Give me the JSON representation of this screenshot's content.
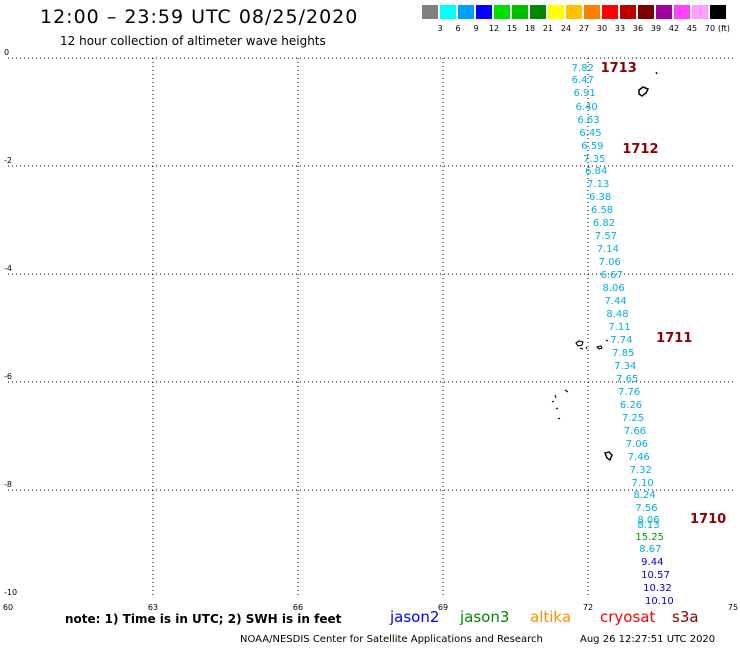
{
  "header": {
    "title": "12:00 – 23:59 UTC 08/25/2020",
    "subtitle": "12 hour collection of altimeter wave heights"
  },
  "legend": {
    "unit": "(ft)",
    "bins": [
      {
        "label": "3",
        "color": "#808080"
      },
      {
        "label": "6",
        "color": "#00ffff"
      },
      {
        "label": "9",
        "color": "#00a0ff"
      },
      {
        "label": "12",
        "color": "#0000ff"
      },
      {
        "label": "15",
        "color": "#00e000"
      },
      {
        "label": "18",
        "color": "#00c000"
      },
      {
        "label": "21",
        "color": "#008800"
      },
      {
        "label": "24",
        "color": "#ffff00"
      },
      {
        "label": "27",
        "color": "#ffc000"
      },
      {
        "label": "30",
        "color": "#ff8000"
      },
      {
        "label": "33",
        "color": "#ff0000"
      },
      {
        "label": "36",
        "color": "#c00000"
      },
      {
        "label": "39",
        "color": "#800000"
      },
      {
        "label": "42",
        "color": "#a000a0"
      },
      {
        "label": "45",
        "color": "#ff40ff"
      },
      {
        "label": "70",
        "color": "#ffa0ff"
      },
      {
        "label": "",
        "color": "#000000"
      }
    ]
  },
  "map": {
    "lon_range": [
      60,
      75
    ],
    "lat_range": [
      -10,
      0
    ],
    "lon_ticks": [
      "60",
      "63",
      "66",
      "69",
      "72",
      "75"
    ],
    "lat_ticks": [
      "0",
      "-2",
      "-4",
      "-6",
      "-8",
      "-10"
    ],
    "pass_labels": [
      {
        "text": "1713",
        "lon": 72.55,
        "lat": -0.2
      },
      {
        "text": "1712",
        "lon": 73.0,
        "lat": -1.7
      },
      {
        "text": "1711",
        "lon": 73.7,
        "lat": -5.2
      },
      {
        "text": "1710",
        "lon": 74.4,
        "lat": -8.55
      }
    ],
    "wave_readings": [
      {
        "v": "7.82",
        "lon": 71.95,
        "lat": -0.2,
        "color": "#00b0e0"
      },
      {
        "v": "6.47",
        "lon": 71.95,
        "lat": -0.42,
        "color": "#00b0e0"
      },
      {
        "v": "6.91",
        "lon": 71.99,
        "lat": -0.66,
        "color": "#00b0e0"
      },
      {
        "v": "6.40",
        "lon": 72.03,
        "lat": -0.92,
        "color": "#00b0e0"
      },
      {
        "v": "6.63",
        "lon": 72.07,
        "lat": -1.16,
        "color": "#00b0e0"
      },
      {
        "v": "6.45",
        "lon": 72.11,
        "lat": -1.4,
        "color": "#00b0e0"
      },
      {
        "v": "6.59",
        "lon": 72.15,
        "lat": -1.64,
        "color": "#00b0e0"
      },
      {
        "v": "7.35",
        "lon": 72.19,
        "lat": -1.88,
        "color": "#00b0e0"
      },
      {
        "v": "6.84",
        "lon": 72.23,
        "lat": -2.12,
        "color": "#00b0e0"
      },
      {
        "v": "7.13",
        "lon": 72.27,
        "lat": -2.36,
        "color": "#00b0e0"
      },
      {
        "v": "6.38",
        "lon": 72.31,
        "lat": -2.6,
        "color": "#00b0e0"
      },
      {
        "v": "6.58",
        "lon": 72.35,
        "lat": -2.84,
        "color": "#00b0e0"
      },
      {
        "v": "6.82",
        "lon": 72.39,
        "lat": -3.08,
        "color": "#00b0e0"
      },
      {
        "v": "7.57",
        "lon": 72.43,
        "lat": -3.32,
        "color": "#00b0e0"
      },
      {
        "v": "7.14",
        "lon": 72.47,
        "lat": -3.56,
        "color": "#00b0e0"
      },
      {
        "v": "7.06",
        "lon": 72.51,
        "lat": -3.8,
        "color": "#00b0e0"
      },
      {
        "v": "6.67",
        "lon": 72.55,
        "lat": -4.04,
        "color": "#00b0e0"
      },
      {
        "v": "8.06",
        "lon": 72.59,
        "lat": -4.28,
        "color": "#00b0e0"
      },
      {
        "v": "7.44",
        "lon": 72.63,
        "lat": -4.52,
        "color": "#00b0e0"
      },
      {
        "v": "8.48",
        "lon": 72.67,
        "lat": -4.76,
        "color": "#00b0e0"
      },
      {
        "v": "7.11",
        "lon": 72.71,
        "lat": -5.0,
        "color": "#00b0e0"
      },
      {
        "v": "7.74",
        "lon": 72.75,
        "lat": -5.24,
        "color": "#00b0e0"
      },
      {
        "v": "7.85",
        "lon": 72.79,
        "lat": -5.48,
        "color": "#00b0e0"
      },
      {
        "v": "7.34",
        "lon": 72.83,
        "lat": -5.72,
        "color": "#00b0e0"
      },
      {
        "v": "7.65",
        "lon": 72.87,
        "lat": -5.96,
        "color": "#00b0e0"
      },
      {
        "v": "7.76",
        "lon": 72.91,
        "lat": -6.2,
        "color": "#00b0e0"
      },
      {
        "v": "6.26",
        "lon": 72.95,
        "lat": -6.44,
        "color": "#00b0e0"
      },
      {
        "v": "7.25",
        "lon": 72.99,
        "lat": -6.68,
        "color": "#00b0e0"
      },
      {
        "v": "7.66",
        "lon": 73.03,
        "lat": -6.92,
        "color": "#00b0e0"
      },
      {
        "v": "7.06",
        "lon": 73.07,
        "lat": -7.16,
        "color": "#00b0e0"
      },
      {
        "v": "7.46",
        "lon": 73.11,
        "lat": -7.4,
        "color": "#00b0e0"
      },
      {
        "v": "7.32",
        "lon": 73.15,
        "lat": -7.64,
        "color": "#00b0e0"
      },
      {
        "v": "7.10",
        "lon": 73.19,
        "lat": -7.88,
        "color": "#00b0e0"
      },
      {
        "v": "8.24",
        "lon": 73.23,
        "lat": -8.12,
        "color": "#00b0e0"
      },
      {
        "v": "7.56",
        "lon": 73.27,
        "lat": -8.36,
        "color": "#00b0e0"
      },
      {
        "v": "8.06",
        "lon": 73.31,
        "lat": -8.58,
        "color": "#00b0e0"
      },
      {
        "v": "8.13",
        "lon": 73.31,
        "lat": -8.66,
        "color": "#00b0e0"
      },
      {
        "v": "15.25",
        "lon": 73.27,
        "lat": -8.88,
        "color": "#00a000"
      },
      {
        "v": "8.67",
        "lon": 73.35,
        "lat": -9.12,
        "color": "#00b0e0"
      },
      {
        "v": "9.44",
        "lon": 73.39,
        "lat": -9.36,
        "color": "#0000cc"
      },
      {
        "v": "10.57",
        "lon": 73.39,
        "lat": -9.6,
        "color": "#0000cc"
      },
      {
        "v": "10.32",
        "lon": 73.43,
        "lat": -9.84,
        "color": "#0000cc"
      },
      {
        "v": "10.10",
        "lon": 73.47,
        "lat": -10.07,
        "color": "#0000cc"
      }
    ]
  },
  "footer": {
    "note": "note:  1) Time is in UTC;  2) SWH is in feet",
    "satellites": [
      {
        "name": "jason2",
        "color": "#0000ff"
      },
      {
        "name": "jason3",
        "color": "#008800"
      },
      {
        "name": "altika",
        "color": "#ff9000"
      },
      {
        "name": "cryosat",
        "color": "#ff0000"
      },
      {
        "name": "s3a",
        "color": "#8b0000"
      }
    ],
    "credit": "NOAA/NESDIS Center for Satellite Applications and Research",
    "timestamp": "Aug 26 12:27:51 UTC 2020"
  }
}
